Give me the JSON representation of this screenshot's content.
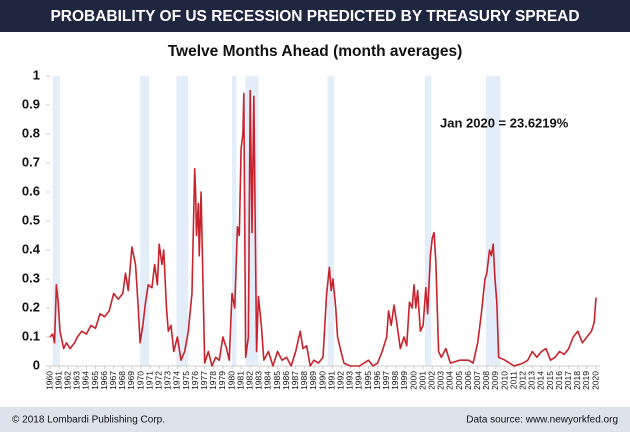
{
  "header": {
    "title": "PROBABILITY OF US RECESSION PREDICTED BY TREASURY SPREAD"
  },
  "footer": {
    "copyright": "© 2018 Lombardi Publishing Corp.",
    "source": "Data source: www.newyorkfed.org"
  },
  "chart_data": {
    "type": "line",
    "title": "Twelve Months Ahead (month averages)",
    "annotation": "Jan 2020 = 23.6219%",
    "color": "#c8232c",
    "shade_color": "#e4eefa",
    "recessions": [
      [
        1960.3,
        1961.1
      ],
      [
        1969.9,
        1970.9
      ],
      [
        1973.9,
        1975.2
      ],
      [
        1980.0,
        1980.5
      ],
      [
        1981.5,
        1982.9
      ],
      [
        1990.5,
        1991.2
      ],
      [
        2001.2,
        2001.9
      ],
      [
        2007.9,
        2009.5
      ]
    ],
    "x": [
      1960.0,
      1960.3,
      1960.5,
      1960.7,
      1960.9,
      1961.1,
      1961.5,
      1961.8,
      1962.2,
      1962.7,
      1963.0,
      1963.5,
      1964.0,
      1964.5,
      1965.0,
      1965.5,
      1966.0,
      1966.5,
      1967.0,
      1967.5,
      1968.0,
      1968.3,
      1968.6,
      1969.0,
      1969.4,
      1969.7,
      1969.9,
      1970.2,
      1970.5,
      1970.8,
      1971.2,
      1971.5,
      1971.8,
      1972.0,
      1972.3,
      1972.5,
      1972.8,
      1973.0,
      1973.3,
      1973.6,
      1974.0,
      1974.4,
      1974.8,
      1975.2,
      1975.6,
      1975.9,
      1976.0,
      1976.1,
      1976.3,
      1976.4,
      1976.6,
      1976.8,
      1977.0,
      1977.4,
      1977.8,
      1978.2,
      1978.6,
      1979.0,
      1979.4,
      1979.7,
      1980.0,
      1980.3,
      1980.6,
      1980.8,
      1981.0,
      1981.2,
      1981.3,
      1981.5,
      1981.8,
      1982.0,
      1982.2,
      1982.4,
      1982.7,
      1982.9,
      1983.2,
      1983.5,
      1984.0,
      1984.5,
      1985.0,
      1985.5,
      1986.0,
      1986.5,
      1987.0,
      1987.5,
      1987.8,
      1988.2,
      1988.6,
      1989.0,
      1989.5,
      1990.0,
      1990.4,
      1990.7,
      1990.9,
      1991.1,
      1991.4,
      1991.6,
      1991.9,
      1992.3,
      1993.0,
      1994.0,
      1995.0,
      1995.5,
      1996.0,
      1996.5,
      1997.0,
      1997.2,
      1997.5,
      1997.8,
      1998.1,
      1998.5,
      1998.9,
      1999.2,
      1999.5,
      1999.8,
      2000.0,
      2000.2,
      2000.4,
      2000.7,
      2001.0,
      2001.3,
      2001.5,
      2001.8,
      2002.0,
      2002.2,
      2002.4,
      2002.7,
      2003.0,
      2003.5,
      2004.0,
      2005.0,
      2006.0,
      2006.5,
      2007.0,
      2007.4,
      2007.8,
      2008.0,
      2008.3,
      2008.5,
      2008.7,
      2008.9,
      2009.1,
      2009.3,
      2010.0,
      2011.0,
      2012.0,
      2012.5,
      2013.0,
      2013.5,
      2014.0,
      2014.5,
      2015.0,
      2015.5,
      2016.0,
      2016.5,
      2017.0,
      2017.5,
      2018.0,
      2018.5,
      2019.0,
      2019.5,
      2019.8,
      2020.0
    ],
    "values": [
      0.1,
      0.11,
      0.08,
      0.28,
      0.22,
      0.12,
      0.06,
      0.08,
      0.06,
      0.08,
      0.1,
      0.12,
      0.11,
      0.14,
      0.13,
      0.18,
      0.17,
      0.19,
      0.25,
      0.23,
      0.25,
      0.32,
      0.26,
      0.41,
      0.35,
      0.2,
      0.08,
      0.14,
      0.22,
      0.28,
      0.27,
      0.35,
      0.28,
      0.42,
      0.35,
      0.4,
      0.2,
      0.12,
      0.14,
      0.05,
      0.1,
      0.02,
      0.05,
      0.12,
      0.25,
      0.68,
      0.6,
      0.45,
      0.56,
      0.38,
      0.6,
      0.3,
      0.01,
      0.05,
      0.0,
      0.03,
      0.02,
      0.1,
      0.06,
      0.02,
      0.25,
      0.2,
      0.48,
      0.45,
      0.75,
      0.8,
      0.94,
      0.03,
      0.1,
      0.95,
      0.46,
      0.93,
      0.05,
      0.24,
      0.15,
      0.02,
      0.05,
      0.0,
      0.05,
      0.02,
      0.03,
      0.0,
      0.05,
      0.12,
      0.06,
      0.07,
      0.0,
      0.02,
      0.01,
      0.03,
      0.25,
      0.34,
      0.26,
      0.3,
      0.2,
      0.1,
      0.06,
      0.01,
      0.0,
      0.0,
      0.02,
      0.0,
      0.01,
      0.05,
      0.1,
      0.19,
      0.14,
      0.21,
      0.15,
      0.06,
      0.1,
      0.07,
      0.22,
      0.2,
      0.28,
      0.2,
      0.26,
      0.12,
      0.14,
      0.27,
      0.18,
      0.38,
      0.44,
      0.46,
      0.36,
      0.05,
      0.03,
      0.06,
      0.01,
      0.02,
      0.02,
      0.01,
      0.08,
      0.18,
      0.3,
      0.32,
      0.4,
      0.38,
      0.42,
      0.3,
      0.22,
      0.03,
      0.02,
      0.0,
      0.01,
      0.02,
      0.05,
      0.03,
      0.05,
      0.06,
      0.02,
      0.03,
      0.05,
      0.04,
      0.06,
      0.1,
      0.12,
      0.08,
      0.1,
      0.12,
      0.15,
      0.236
    ],
    "xlim": [
      1960,
      2020
    ],
    "xticks": [
      1960,
      1961,
      1962,
      1963,
      1964,
      1965,
      1966,
      1967,
      1968,
      1969,
      1970,
      1971,
      1972,
      1973,
      1974,
      1975,
      1976,
      1977,
      1978,
      1979,
      1980,
      1981,
      1982,
      1983,
      1984,
      1985,
      1986,
      1987,
      1988,
      1989,
      1990,
      1991,
      1992,
      1993,
      1994,
      1995,
      1996,
      1997,
      1998,
      1999,
      2000,
      2001,
      2002,
      2003,
      2004,
      2005,
      2006,
      2007,
      2008,
      2009,
      2010,
      2011,
      2012,
      2013,
      2014,
      2015,
      2016,
      2017,
      2018,
      2019,
      2020
    ],
    "ylim": [
      0,
      1
    ],
    "yticks": [
      0,
      0.1,
      0.2,
      0.3,
      0.4,
      0.5,
      0.6,
      0.7,
      0.8,
      0.9,
      1
    ]
  }
}
